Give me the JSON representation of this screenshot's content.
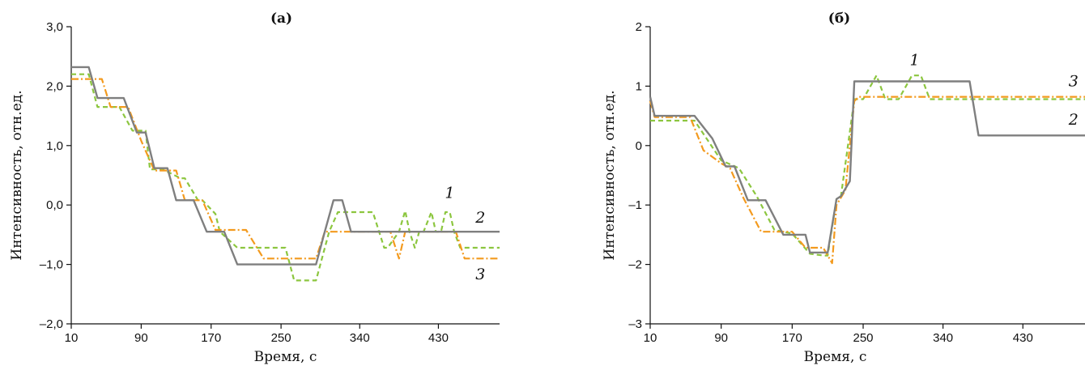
{
  "chart_data": [
    {
      "type": "line",
      "title": "(а)",
      "xlabel": "Время, с",
      "ylabel": "Интенсивность, отн.ед.",
      "xlim": [
        10,
        500
      ],
      "ylim": [
        -2.0,
        3.0
      ],
      "xticks": [
        10,
        90,
        170,
        250,
        340,
        430
      ],
      "xtick_labels": [
        "10",
        "90",
        "170",
        "250",
        "340",
        "430"
      ],
      "yticks": [
        -2.0,
        -1.0,
        0.0,
        1.0,
        2.0,
        3.0
      ],
      "ytick_labels": [
        "–2,0",
        "–1,0",
        "0,0",
        "1,0",
        "2,0",
        "3,0"
      ],
      "grid": false,
      "series": [
        {
          "name": "1",
          "color": "#8cc63f",
          "dash": "dashed",
          "x": [
            10,
            30,
            40,
            65,
            80,
            95,
            100,
            115,
            135,
            140,
            155,
            160,
            175,
            180,
            200,
            220,
            240,
            255,
            265,
            280,
            290,
            305,
            315,
            340,
            355,
            368,
            372,
            385,
            392,
            397,
            403,
            408,
            413,
            422,
            427,
            433,
            438,
            443,
            448,
            455,
            500
          ],
          "y": [
            2.2,
            2.2,
            1.65,
            1.65,
            1.25,
            1.25,
            0.6,
            0.6,
            0.45,
            0.45,
            0.08,
            0.08,
            -0.15,
            -0.45,
            -0.72,
            -0.72,
            -0.72,
            -0.72,
            -1.27,
            -1.27,
            -1.27,
            -0.45,
            -0.12,
            -0.12,
            -0.12,
            -0.72,
            -0.72,
            -0.45,
            -0.1,
            -0.45,
            -0.72,
            -0.45,
            -0.45,
            -0.12,
            -0.45,
            -0.45,
            -0.12,
            -0.12,
            -0.45,
            -0.72,
            -0.72
          ]
        },
        {
          "name": "2",
          "color": "#7f7f7f",
          "dash": "solid",
          "x": [
            10,
            30,
            40,
            60,
            70,
            85,
            95,
            105,
            120,
            130,
            140,
            150,
            165,
            170,
            185,
            200,
            215,
            235,
            255,
            275,
            290,
            300,
            310,
            320,
            330,
            340,
            350,
            360,
            400,
            420,
            440,
            460,
            500
          ],
          "y": [
            2.32,
            2.32,
            1.8,
            1.8,
            1.8,
            1.22,
            1.22,
            0.62,
            0.62,
            0.08,
            0.08,
            0.08,
            -0.45,
            -0.45,
            -0.45,
            -1.0,
            -1.0,
            -1.0,
            -1.0,
            -1.0,
            -1.0,
            -0.45,
            0.08,
            0.08,
            -0.45,
            -0.45,
            -0.45,
            -0.45,
            -0.45,
            -0.45,
            -0.45,
            -0.45,
            -0.45
          ]
        },
        {
          "name": "3",
          "color": "#f39a1e",
          "dash": "dashdot",
          "x": [
            10,
            25,
            45,
            55,
            75,
            90,
            105,
            130,
            140,
            160,
            175,
            185,
            210,
            230,
            250,
            275,
            290,
            300,
            330,
            375,
            385,
            392,
            400,
            430,
            450,
            460,
            500
          ],
          "y": [
            2.12,
            2.12,
            2.12,
            1.65,
            1.65,
            1.08,
            0.58,
            0.58,
            0.08,
            0.08,
            -0.42,
            -0.42,
            -0.42,
            -0.9,
            -0.9,
            -0.9,
            -0.9,
            -0.45,
            -0.45,
            -0.45,
            -0.9,
            -0.45,
            -0.45,
            -0.45,
            -0.45,
            -0.9,
            -0.9
          ]
        }
      ],
      "series_labels": [
        {
          "text": "1",
          "x": 443,
          "y": 0.12
        },
        {
          "text": "2",
          "x": 478,
          "y": -0.3
        },
        {
          "text": "3",
          "x": 478,
          "y": -1.25
        }
      ]
    },
    {
      "type": "line",
      "title": "(б)",
      "xlabel": "Время, с",
      "ylabel": "Интенсивность, отн.ед.",
      "xlim": [
        10,
        500
      ],
      "ylim": [
        -3,
        2
      ],
      "xticks": [
        10,
        90,
        170,
        250,
        340,
        430
      ],
      "xtick_labels": [
        "10",
        "90",
        "170",
        "250",
        "340",
        "430"
      ],
      "yticks": [
        -3,
        -2,
        -1,
        0,
        1,
        2
      ],
      "ytick_labels": [
        "–3",
        "–2",
        "–1",
        "0",
        "1",
        "2"
      ],
      "grid": false,
      "series": [
        {
          "name": "1",
          "color": "#8cc63f",
          "dash": "dashed",
          "x": [
            10,
            30,
            60,
            90,
            110,
            130,
            150,
            170,
            190,
            205,
            210,
            220,
            225,
            240,
            250,
            265,
            275,
            290,
            305,
            315,
            325,
            335,
            350,
            370,
            500
          ],
          "y": [
            0.42,
            0.42,
            0.42,
            -0.25,
            -0.38,
            -0.85,
            -1.42,
            -1.48,
            -1.82,
            -1.85,
            -1.85,
            -0.9,
            -0.85,
            0.78,
            0.78,
            1.18,
            0.78,
            0.78,
            1.18,
            1.18,
            0.78,
            0.78,
            0.78,
            0.78,
            0.78
          ]
        },
        {
          "name": "2",
          "color": "#7f7f7f",
          "dash": "solid",
          "x": [
            10,
            15,
            55,
            60,
            80,
            95,
            105,
            120,
            135,
            140,
            160,
            175,
            185,
            190,
            210,
            220,
            225,
            235,
            240,
            300,
            370,
            380,
            500
          ],
          "y": [
            0.82,
            0.5,
            0.5,
            0.5,
            0.12,
            -0.35,
            -0.35,
            -0.92,
            -0.92,
            -0.92,
            -1.5,
            -1.5,
            -1.5,
            -1.8,
            -1.8,
            -0.9,
            -0.85,
            -0.6,
            1.08,
            1.08,
            1.08,
            0.17,
            0.17
          ]
        },
        {
          "name": "3",
          "color": "#f39a1e",
          "dash": "dashdot",
          "x": [
            10,
            15,
            55,
            70,
            90,
            100,
            115,
            135,
            150,
            170,
            185,
            205,
            215,
            220,
            230,
            240,
            245,
            300,
            500
          ],
          "y": [
            0.75,
            0.48,
            0.48,
            -0.08,
            -0.3,
            -0.38,
            -0.88,
            -1.45,
            -1.45,
            -1.45,
            -1.72,
            -1.72,
            -1.98,
            -1.0,
            -0.75,
            0.75,
            0.82,
            0.82,
            0.82
          ]
        }
      ],
      "series_labels": [
        {
          "text": "1",
          "x": 308,
          "y": 1.35
        },
        {
          "text": "3",
          "x": 487,
          "y": 1.0
        },
        {
          "text": "2",
          "x": 487,
          "y": 0.35
        }
      ]
    }
  ]
}
